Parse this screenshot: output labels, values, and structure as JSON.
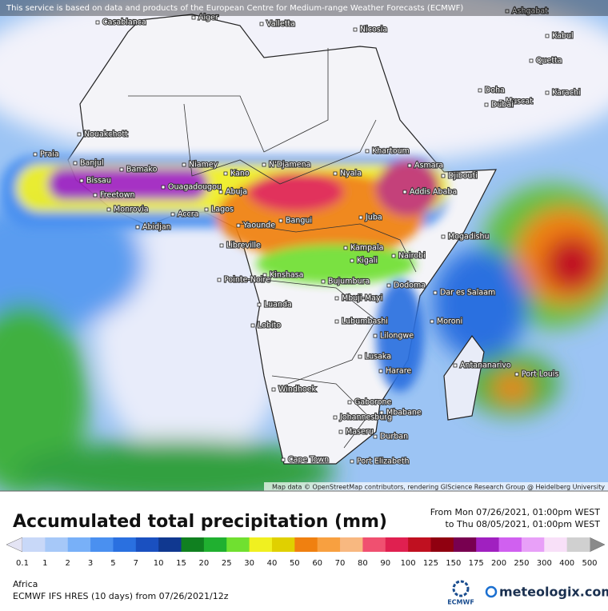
{
  "header": {
    "notice": "This service is based on data and products of the European Centre for Medium-range Weather Forecasts (ECMWF)",
    "attribution": "Map data © OpenStreetMap contributors, rendering GIScience Research Group @ Heidelberg University"
  },
  "map": {
    "cities": [
      "Casablanca",
      "Alger",
      "Valletta",
      "Nicosia",
      "Ashgabat",
      "Kabul",
      "Quetta",
      "Karachi",
      "Muscat",
      "Doha",
      "Dubai",
      "Nouakchott",
      "Praia",
      "Banjul",
      "Bissau",
      "Bamako",
      "Niamey",
      "N'Djamena",
      "Khartoum",
      "Asmara",
      "Djibouti",
      "Freetown",
      "Ouagadougou",
      "Kano",
      "Abuja",
      "Nyala",
      "Addis Ababa",
      "Monrovia",
      "Abidjan",
      "Accra",
      "Lagos",
      "Yaounde",
      "Bangui",
      "Juba",
      "Mogadishu",
      "Libreville",
      "Kampala",
      "Nairobi",
      "Kigali",
      "Pointe-Noire",
      "Kinshasa",
      "Bujumbura",
      "Dodoma",
      "Dar es Salaam",
      "Luanda",
      "Mbuji-Mayi",
      "Lubumbashi",
      "Moroni",
      "Lobito",
      "Lilongwe",
      "Lusaka",
      "Harare",
      "Antananarivo",
      "Port Louis",
      "Windhoek",
      "Gaborone",
      "Johannesburg",
      "Mbabane",
      "Maseru",
      "Durban",
      "Cape Town",
      "Port Elizabeth"
    ]
  },
  "legend": {
    "title": "Accumulated total precipitation (mm)",
    "period_from": "From Mon 07/26/2021, 01:00pm WEST",
    "period_to": "to Thu 08/05/2021, 01:00pm WEST",
    "labels": [
      "0.1",
      "1",
      "2",
      "3",
      "5",
      "7",
      "10",
      "15",
      "20",
      "25",
      "30",
      "40",
      "50",
      "60",
      "70",
      "80",
      "90",
      "100",
      "125",
      "150",
      "175",
      "200",
      "250",
      "300",
      "400",
      "500"
    ],
    "colors": [
      "#c8d8f8",
      "#a6c8f8",
      "#78b0f8",
      "#4a90f0",
      "#2a70e0",
      "#1a50c0",
      "#103890",
      "#108020",
      "#20b030",
      "#70e030",
      "#f0f020",
      "#e0d000",
      "#f08010",
      "#f8a040",
      "#f8b880",
      "#f05070",
      "#e02050",
      "#c01020",
      "#900010",
      "#780050",
      "#a020c0",
      "#d060f0",
      "#e8a0f8",
      "#f8e0f8",
      "#d0d0d0"
    ],
    "low_color": "#e4e4f4",
    "high_color": "#8a8a8a"
  },
  "footer": {
    "region": "Africa",
    "model": "ECMWF IFS HRES (10 days) from 07/26/2021/12z",
    "logo_ecmwf": "ECMWF",
    "logo_site": "meteologix.com"
  }
}
